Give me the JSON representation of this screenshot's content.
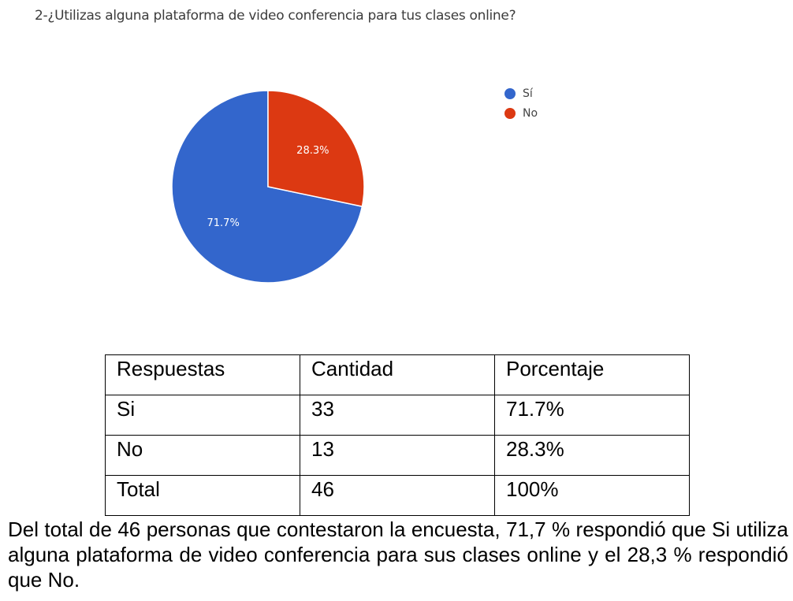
{
  "question": {
    "title": "2-¿Utilizas alguna plataforma de video conferencia para tus clases online?"
  },
  "chart_data": {
    "type": "pie",
    "categories": [
      "Sí",
      "No"
    ],
    "values": [
      71.7,
      28.3
    ],
    "labels": [
      "71.7%",
      "28.3%"
    ],
    "colors": [
      "#3366cc",
      "#dc3912"
    ],
    "legend": "right",
    "title": ""
  },
  "table": {
    "headers": [
      "Respuestas",
      "Cantidad",
      "Porcentaje"
    ],
    "rows": [
      [
        "Si",
        "33",
        "71.7%"
      ],
      [
        "No",
        "13",
        "28.3%"
      ],
      [
        "Total",
        "46",
        "100%"
      ]
    ]
  },
  "summary": {
    "text": "Del total de 46 personas que contestaron la encuesta, 71,7 % respondió que Si utiliza alguna plataforma de video conferencia para sus clases online y el 28,3 % respondió que No."
  }
}
